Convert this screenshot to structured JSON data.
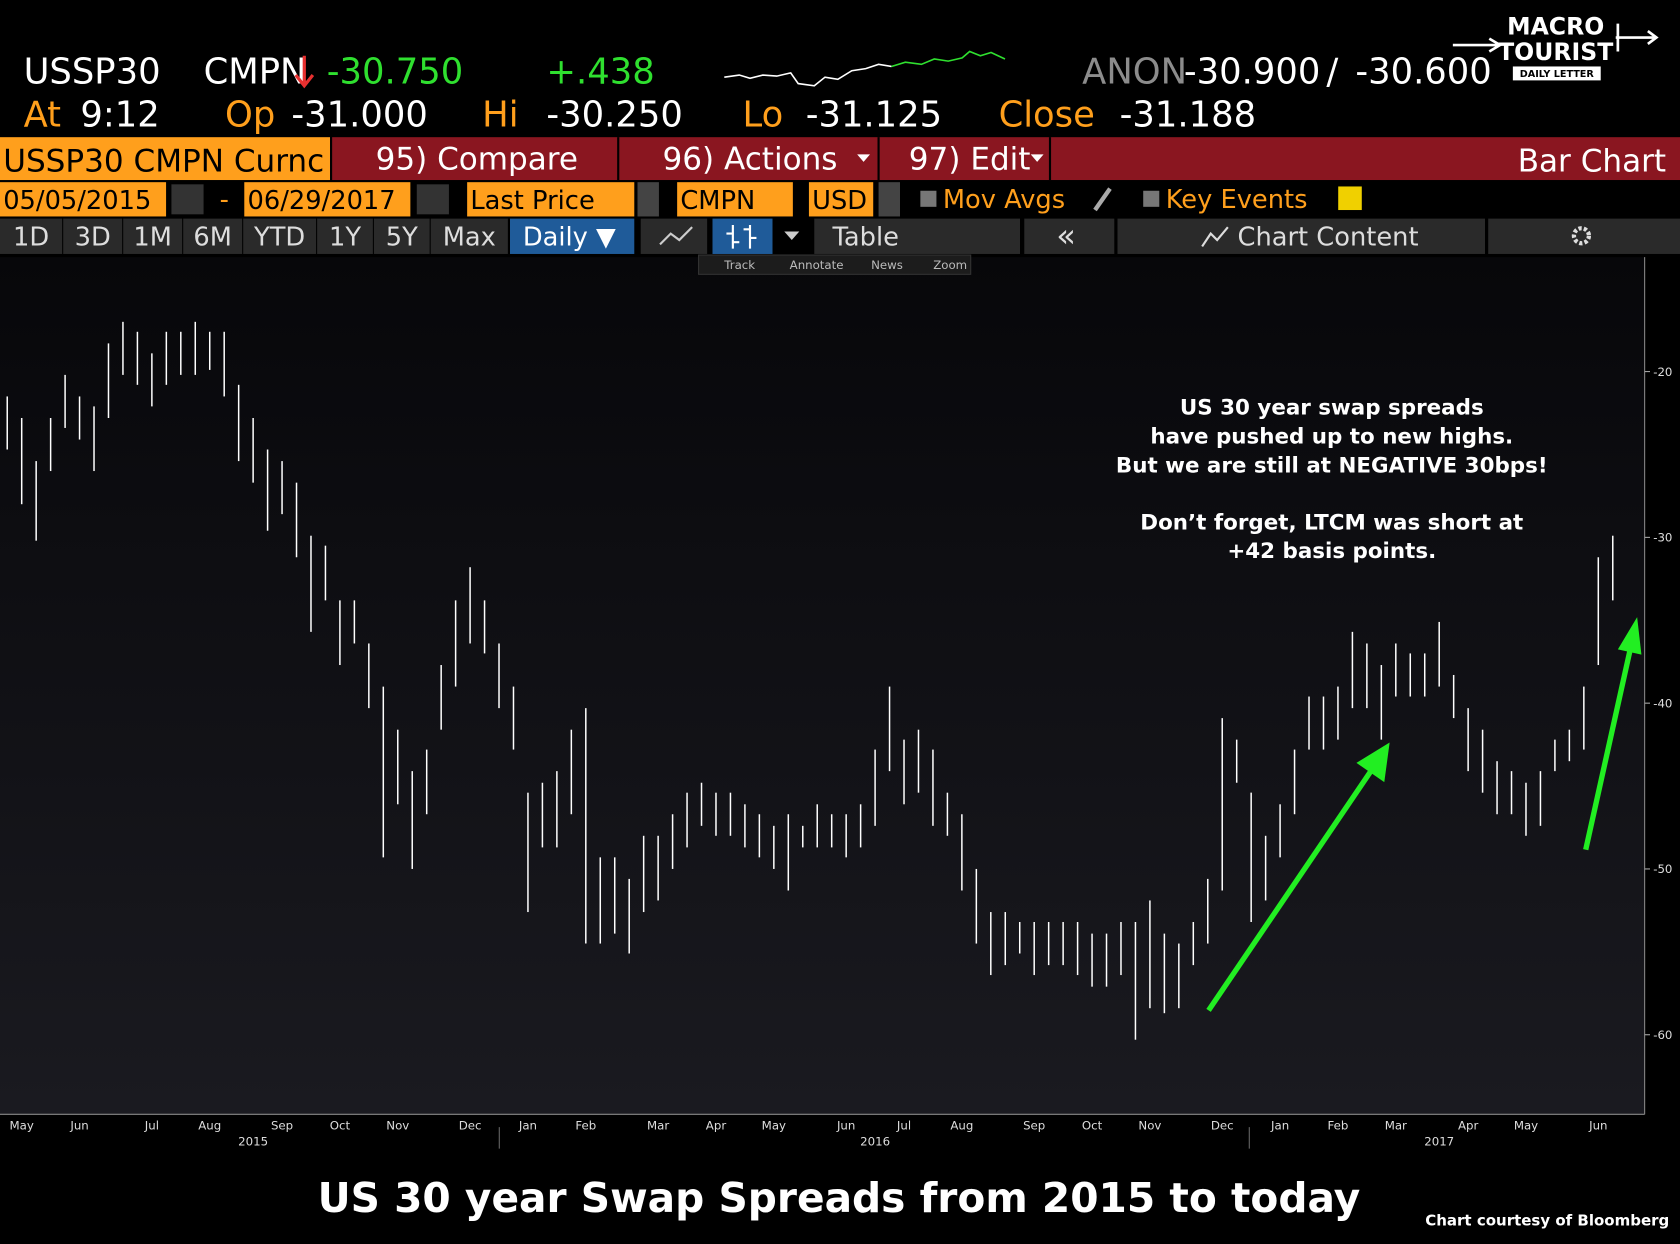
{
  "header": {
    "symbol": "USSP30",
    "source": "CMPN",
    "last": "-30.750",
    "change": "+.438",
    "quote_source": "ANON",
    "bid": "-30.900",
    "separator": "/",
    "ask": "-30.600",
    "time_label": "At",
    "time": "9:12",
    "open_label": "Op",
    "open": "-31.000",
    "high_label": "Hi",
    "high": "-30.250",
    "low_label": "Lo",
    "low": "-31.125",
    "close_label": "Close",
    "close": "-31.188"
  },
  "toolbar": {
    "ticker": "USSP30 CMPN Curnc",
    "compare": "95) Compare",
    "actions": "96) Actions",
    "edit": "97) Edit",
    "chart_kind": "Bar Chart",
    "start_date": "05/05/2015",
    "dash": "-",
    "end_date": "06/29/2017",
    "field": "Last Price",
    "pricing": "CMPN",
    "currency": "USD",
    "mov_avgs": "Mov Avgs",
    "key_events": "Key Events",
    "periods": [
      "1D",
      "3D",
      "1M",
      "6M",
      "YTD",
      "1Y",
      "5Y",
      "Max"
    ],
    "frequency": "Daily ▼",
    "table": "Table",
    "collapse": "«",
    "chart_content": "Chart Content",
    "tools": [
      "Track",
      "Annotate",
      "News",
      "Zoom"
    ]
  },
  "logo": {
    "line1": "MACRO",
    "line2": "TOURIST",
    "line3": "DAILY LETTER"
  },
  "chart_data": {
    "type": "ohlc",
    "title": "US 30 year Swap Spreads from 2015 to today",
    "credit": "Chart courtesy of Bloomberg",
    "annotation": [
      "US 30 year swap spreads",
      "have pushed up to new highs.",
      "But we are still at NEGATIVE 30bps!",
      "Don’t forget, LTCM was short at",
      "+42 basis points."
    ],
    "color": "#ffffff",
    "categories": [
      null,
      "May",
      null,
      null,
      null,
      "Jun",
      null,
      null,
      null,
      null,
      "Jul",
      null,
      null,
      null,
      "Aug",
      null,
      null,
      null,
      null,
      "Sep",
      null,
      null,
      null,
      "Oct",
      null,
      null,
      null,
      "Nov",
      null,
      null,
      null,
      null,
      "Dec",
      null,
      null,
      null,
      "Jan",
      null,
      null,
      null,
      "Feb",
      null,
      null,
      null,
      null,
      "Mar",
      null,
      null,
      null,
      "Apr",
      null,
      null,
      null,
      "May",
      null,
      null,
      null,
      null,
      "Jun",
      null,
      null,
      null,
      "Jul",
      null,
      null,
      null,
      "Aug",
      null,
      null,
      null,
      null,
      "Sep",
      null,
      null,
      null,
      "Oct",
      null,
      null,
      null,
      "Nov",
      null,
      null,
      null,
      null,
      "Dec",
      null,
      null,
      null,
      "Jan",
      null,
      null,
      null,
      "Feb",
      null,
      null,
      null,
      "Mar",
      null,
      null,
      null,
      null,
      "Apr",
      null,
      null,
      null,
      "May",
      null,
      null,
      null,
      null,
      "Jun",
      null
    ],
    "years": [
      null,
      null,
      null,
      null,
      null,
      null,
      null,
      null,
      null,
      null,
      null,
      null,
      null,
      null,
      null,
      null,
      null,
      "2015",
      null,
      null,
      null,
      null,
      null,
      null,
      null,
      null,
      null,
      null,
      null,
      null,
      null,
      null,
      null,
      null,
      null,
      null,
      null,
      null,
      null,
      null,
      null,
      null,
      null,
      null,
      null,
      null,
      null,
      null,
      null,
      null,
      null,
      null,
      null,
      null,
      null,
      null,
      null,
      null,
      null,
      null,
      "2016",
      null,
      null,
      null,
      null,
      null,
      null,
      null,
      null,
      null,
      null,
      null,
      null,
      null,
      null,
      null,
      null,
      null,
      null,
      null,
      null,
      null,
      null,
      null,
      null,
      null,
      null,
      null,
      null,
      null,
      null,
      null,
      null,
      null,
      null,
      null,
      null,
      null,
      null,
      "2017",
      null,
      null,
      null,
      null,
      null,
      null,
      null,
      null,
      null,
      null,
      null,
      null
    ],
    "high": [
      -21.5,
      -22.8,
      -25.4,
      -22.8,
      -20.2,
      -21.5,
      -22.1,
      -18.3,
      -17.0,
      -17.6,
      -18.9,
      -17.6,
      -17.6,
      -17.0,
      -17.6,
      -17.6,
      -20.8,
      -22.8,
      -24.7,
      -25.4,
      -26.7,
      -29.9,
      -30.5,
      -33.8,
      -33.8,
      -36.4,
      -39.0,
      -41.6,
      -44.1,
      -42.8,
      -37.7,
      -33.8,
      -31.8,
      -33.8,
      -36.4,
      -39.0,
      -45.4,
      -44.8,
      -44.1,
      -41.6,
      -40.3,
      -49.3,
      -49.3,
      -50.6,
      -48.0,
      -48.0,
      -46.7,
      -45.4,
      -44.8,
      -45.4,
      -45.4,
      -46.1,
      -46.7,
      -47.4,
      -46.7,
      -47.4,
      -46.1,
      -46.7,
      -46.7,
      -46.1,
      -42.8,
      -39.0,
      -42.2,
      -41.6,
      -42.8,
      -45.4,
      -46.7,
      -50.0,
      -52.6,
      -52.6,
      -53.2,
      -53.2,
      -53.2,
      -53.2,
      -53.2,
      -53.9,
      -53.9,
      -53.2,
      -53.2,
      -51.9,
      -53.9,
      -54.5,
      -53.2,
      -50.6,
      -40.9,
      -42.2,
      -45.4,
      -48.0,
      -46.1,
      -42.8,
      -39.6,
      -39.6,
      -39.0,
      -35.7,
      -36.4,
      -37.7,
      -36.4,
      -37.0,
      -37.0,
      -35.1,
      -38.3,
      -40.3,
      -41.6,
      -43.5,
      -44.1,
      -44.8,
      -44.1,
      -42.2,
      -41.6,
      -39.0,
      -31.2,
      -29.9
    ],
    "low": [
      -24.7,
      -28.0,
      -30.2,
      -26.0,
      -23.4,
      -24.1,
      -26.0,
      -22.8,
      -20.2,
      -20.8,
      -22.1,
      -20.8,
      -20.2,
      -20.2,
      -19.9,
      -21.5,
      -25.4,
      -26.7,
      -29.6,
      -28.6,
      -31.2,
      -35.7,
      -33.8,
      -37.7,
      -36.4,
      -40.3,
      -49.3,
      -46.1,
      -50.0,
      -46.7,
      -41.6,
      -39.0,
      -36.4,
      -37.0,
      -40.3,
      -42.8,
      -52.6,
      -48.7,
      -48.7,
      -46.7,
      -54.5,
      -54.5,
      -53.9,
      -55.1,
      -52.6,
      -51.9,
      -50.0,
      -48.7,
      -47.4,
      -48.0,
      -48.0,
      -48.7,
      -49.3,
      -50.0,
      -51.3,
      -48.7,
      -48.7,
      -48.7,
      -49.3,
      -48.7,
      -47.4,
      -44.1,
      -46.1,
      -45.4,
      -47.4,
      -48.0,
      -51.3,
      -54.5,
      -56.4,
      -55.8,
      -55.1,
      -56.4,
      -55.8,
      -55.8,
      -56.4,
      -57.1,
      -57.1,
      -56.4,
      -60.3,
      -58.4,
      -58.7,
      -58.4,
      -55.8,
      -54.5,
      -51.3,
      -44.8,
      -53.2,
      -51.9,
      -49.3,
      -46.7,
      -42.8,
      -42.8,
      -42.2,
      -40.3,
      -40.3,
      -42.2,
      -39.6,
      -39.6,
      -39.6,
      -39.0,
      -40.9,
      -44.1,
      -45.4,
      -46.7,
      -46.7,
      -48.0,
      -47.4,
      -44.1,
      -43.5,
      -42.8,
      -37.7,
      -33.8
    ],
    "ylim": [
      -64.8,
      -13.1
    ],
    "yticks": [
      -20,
      -30,
      -40,
      -50,
      -60
    ]
  }
}
